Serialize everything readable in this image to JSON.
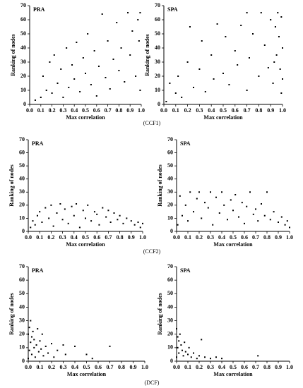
{
  "captions": [
    "(CCF1)",
    "(CCF2)",
    "(DCF)"
  ],
  "chart_data": [
    {
      "type": "scatter",
      "title": "PRA",
      "x_label": "Max correlation",
      "y_label": "Ranking of nodes",
      "color": "#000000",
      "x": [
        0.05,
        0.1,
        0.12,
        0.15,
        0.18,
        0.2,
        0.22,
        0.25,
        0.28,
        0.3,
        0.33,
        0.35,
        0.38,
        0.4,
        0.42,
        0.45,
        0.48,
        0.5,
        0.52,
        0.55,
        0.58,
        0.6,
        0.62,
        0.65,
        0.68,
        0.7,
        0.72,
        0.75,
        0.78,
        0.8,
        0.82,
        0.85,
        0.88,
        0.9,
        0.92,
        0.95,
        0.97,
        0.99,
        0.99,
        0.98
      ],
      "y": [
        3,
        5,
        20,
        10,
        30,
        8,
        35,
        15,
        25,
        5,
        40,
        12,
        28,
        18,
        44,
        9,
        33,
        22,
        50,
        14,
        38,
        6,
        27,
        64,
        19,
        45,
        11,
        32,
        58,
        24,
        40,
        16,
        65,
        35,
        52,
        20,
        60,
        65,
        10,
        45
      ],
      "xlim": [
        0,
        1
      ],
      "ylim": [
        0,
        70
      ],
      "xticks": [
        {
          "value": 0,
          "label": "0.0"
        },
        {
          "value": 0.1,
          "label": "0.1"
        },
        {
          "value": 0.2,
          "label": "0.2"
        },
        {
          "value": 0.3,
          "label": "0.3"
        },
        {
          "value": 0.4,
          "label": "0.4"
        },
        {
          "value": 0.5,
          "label": "0.5"
        },
        {
          "value": 0.6,
          "label": "0.6"
        },
        {
          "value": 0.7,
          "label": "0.7"
        },
        {
          "value": 0.8,
          "label": "0.8"
        },
        {
          "value": 0.9,
          "label": "0.9"
        },
        {
          "value": 1,
          "label": "1.0"
        }
      ],
      "yticks": [
        0,
        10,
        20,
        30,
        40,
        50,
        60,
        70
      ]
    },
    {
      "type": "scatter",
      "title": "SPA",
      "x_label": "Max correlation",
      "y_label": "Ranking of nodes",
      "color": "#000000",
      "x": [
        0.02,
        0.05,
        0.1,
        0.12,
        0.15,
        0.2,
        0.22,
        0.25,
        0.3,
        0.32,
        0.35,
        0.4,
        0.42,
        0.45,
        0.5,
        0.52,
        0.55,
        0.6,
        0.62,
        0.65,
        0.7,
        0.7,
        0.72,
        0.75,
        0.8,
        0.82,
        0.85,
        0.88,
        0.9,
        0.92,
        0.94,
        0.95,
        0.96,
        0.97,
        0.98,
        0.99,
        0.99,
        1.0,
        1.0,
        0.93
      ],
      "y": [
        2,
        15,
        8,
        20,
        5,
        30,
        55,
        12,
        25,
        45,
        9,
        35,
        18,
        57,
        22,
        48,
        14,
        38,
        28,
        56,
        65,
        10,
        33,
        50,
        20,
        65,
        42,
        26,
        60,
        15,
        55,
        35,
        65,
        48,
        25,
        62,
        8,
        40,
        18,
        30
      ],
      "xlim": [
        0,
        1
      ],
      "ylim": [
        0,
        70
      ],
      "xticks": [
        {
          "value": 0,
          "label": "0.0"
        },
        {
          "value": 0.1,
          "label": "0.1"
        },
        {
          "value": 0.2,
          "label": "0.2"
        },
        {
          "value": 0.3,
          "label": "0.3"
        },
        {
          "value": 0.4,
          "label": "0.4"
        },
        {
          "value": 0.5,
          "label": "0.5"
        },
        {
          "value": 0.6,
          "label": "0.6"
        },
        {
          "value": 0.7,
          "label": "0.7"
        },
        {
          "value": 0.8,
          "label": "0.8"
        },
        {
          "value": 0.9,
          "label": "0.9"
        },
        {
          "value": 1,
          "label": "1.0"
        }
      ],
      "yticks": [
        0,
        10,
        20,
        30,
        40,
        50,
        60,
        70
      ]
    },
    {
      "type": "scatter",
      "title": "PRA",
      "x_label": "Max correlation",
      "y_label": "Ranking of nodes",
      "color": "#000000",
      "x": [
        0.02,
        0.04,
        0.06,
        0.08,
        0.1,
        0.12,
        0.15,
        0.18,
        0.2,
        0.22,
        0.25,
        0.28,
        0.3,
        0.32,
        0.35,
        0.38,
        0.4,
        0.42,
        0.45,
        0.48,
        0.5,
        0.52,
        0.55,
        0.58,
        0.6,
        0.62,
        0.65,
        0.68,
        0.7,
        0.72,
        0.75,
        0.78,
        0.8,
        0.83,
        0.86,
        0.9,
        0.93,
        0.96,
        0.98,
        1.0
      ],
      "y": [
        3,
        8,
        5,
        12,
        15,
        7,
        18,
        10,
        20,
        4,
        14,
        21,
        9,
        17,
        6,
        19,
        12,
        21,
        3,
        16,
        10,
        20,
        8,
        15,
        13,
        5,
        18,
        11,
        16,
        7,
        14,
        9,
        12,
        6,
        10,
        8,
        5,
        7,
        3,
        6
      ],
      "xlim": [
        0,
        1
      ],
      "ylim": [
        0,
        70
      ],
      "xticks": [
        {
          "value": 0,
          "label": "0.0"
        },
        {
          "value": 0.1,
          "label": "0.1"
        },
        {
          "value": 0.2,
          "label": "0.2"
        },
        {
          "value": 0.3,
          "label": "0.3"
        },
        {
          "value": 0.4,
          "label": "0.4"
        },
        {
          "value": 0.5,
          "label": "0.5"
        },
        {
          "value": 0.6,
          "label": "0.6"
        },
        {
          "value": 0.7,
          "label": "0.7"
        },
        {
          "value": 0.8,
          "label": "0.8"
        },
        {
          "value": 0.9,
          "label": "0.9"
        },
        {
          "value": 1,
          "label": "1.0"
        }
      ],
      "yticks": [
        0,
        10,
        20,
        30,
        40,
        50,
        60,
        70
      ]
    },
    {
      "type": "scatter",
      "title": "SPA",
      "x_label": "Max correlation",
      "y_label": "Ranking of nodes",
      "color": "#000000",
      "x": [
        0.01,
        0.03,
        0.05,
        0.08,
        0.1,
        0.12,
        0.15,
        0.18,
        0.2,
        0.22,
        0.25,
        0.28,
        0.3,
        0.32,
        0.35,
        0.38,
        0.4,
        0.42,
        0.45,
        0.48,
        0.5,
        0.52,
        0.55,
        0.58,
        0.6,
        0.62,
        0.65,
        0.68,
        0.7,
        0.72,
        0.75,
        0.78,
        0.8,
        0.83,
        0.86,
        0.9,
        0.93,
        0.96,
        0.98,
        1.0
      ],
      "y": [
        5,
        27,
        12,
        20,
        8,
        30,
        15,
        25,
        30,
        10,
        22,
        18,
        30,
        5,
        26,
        14,
        30,
        20,
        9,
        24,
        16,
        28,
        11,
        22,
        6,
        19,
        30,
        13,
        17,
        8,
        21,
        12,
        30,
        9,
        15,
        7,
        11,
        5,
        8,
        3
      ],
      "xlim": [
        0,
        1
      ],
      "ylim": [
        0,
        70
      ],
      "xticks": [
        {
          "value": 0,
          "label": "0.0"
        },
        {
          "value": 0.1,
          "label": "0.1"
        },
        {
          "value": 0.2,
          "label": "0.2"
        },
        {
          "value": 0.3,
          "label": "0.3"
        },
        {
          "value": 0.4,
          "label": "0.4"
        },
        {
          "value": 0.5,
          "label": "0.5"
        },
        {
          "value": 0.6,
          "label": "0.6"
        },
        {
          "value": 0.7,
          "label": "0.7"
        },
        {
          "value": 0.8,
          "label": "0.8"
        },
        {
          "value": 0.9,
          "label": "0.9"
        },
        {
          "value": 1,
          "label": "1.0"
        }
      ],
      "yticks": [
        0,
        10,
        20,
        30,
        40,
        50,
        60,
        70
      ]
    },
    {
      "type": "scatter",
      "title": "PRA",
      "x_label": "Max correlation",
      "y_label": "Ranking of nodes",
      "color": "#000000",
      "x": [
        0.0,
        0.0,
        0.01,
        0.01,
        0.02,
        0.02,
        0.03,
        0.03,
        0.04,
        0.05,
        0.05,
        0.06,
        0.07,
        0.08,
        0.09,
        0.1,
        0.11,
        0.12,
        0.13,
        0.15,
        0.17,
        0.2,
        0.22,
        0.25,
        0.3,
        0.32,
        0.4,
        0.5,
        0.55,
        0.7
      ],
      "y": [
        2,
        20,
        8,
        25,
        14,
        30,
        5,
        18,
        22,
        10,
        16,
        3,
        12,
        24,
        7,
        15,
        9,
        20,
        4,
        11,
        6,
        13,
        3,
        8,
        12,
        5,
        11,
        5,
        2,
        11
      ],
      "xlim": [
        0,
        1
      ],
      "ylim": [
        0,
        70
      ],
      "xticks": [
        {
          "value": 0,
          "label": "0.0"
        },
        {
          "value": 0.1,
          "label": "0.1"
        },
        {
          "value": 0.2,
          "label": "0.2"
        },
        {
          "value": 0.3,
          "label": "0.3"
        },
        {
          "value": 0.4,
          "label": "0.4"
        },
        {
          "value": 0.5,
          "label": "0.5"
        },
        {
          "value": 0.6,
          "label": "0.6"
        },
        {
          "value": 0.7,
          "label": "0.7"
        },
        {
          "value": 0.8,
          "label": "0.8"
        },
        {
          "value": 0.9,
          "label": "0.9"
        },
        {
          "value": 1,
          "label": "1.0"
        }
      ],
      "yticks": [
        0,
        10,
        20,
        30,
        40,
        50,
        60,
        70
      ]
    },
    {
      "type": "scatter",
      "title": "SPA",
      "x_label": "Max correlation",
      "y_label": "Ranking of nodes",
      "color": "#000000",
      "x": [
        0.0,
        0.0,
        0.01,
        0.01,
        0.02,
        0.02,
        0.03,
        0.04,
        0.05,
        0.06,
        0.07,
        0.08,
        0.1,
        0.11,
        0.13,
        0.15,
        0.18,
        0.2,
        0.22,
        0.25,
        0.3,
        0.35,
        0.4,
        0.72
      ],
      "y": [
        3,
        24,
        10,
        18,
        6,
        15,
        20,
        12,
        8,
        4,
        14,
        7,
        5,
        10,
        3,
        6,
        2,
        4,
        16,
        3,
        2,
        3,
        2,
        4
      ],
      "xlim": [
        0,
        1
      ],
      "ylim": [
        0,
        70
      ],
      "xticks": [
        {
          "value": 0,
          "label": "0.0"
        },
        {
          "value": 0.1,
          "label": "0.1"
        },
        {
          "value": 0.2,
          "label": "0.2"
        },
        {
          "value": 0.3,
          "label": "0.3"
        },
        {
          "value": 0.4,
          "label": "0.4"
        },
        {
          "value": 0.5,
          "label": "0.5"
        },
        {
          "value": 0.6,
          "label": "0.6"
        },
        {
          "value": 0.7,
          "label": "0.7"
        },
        {
          "value": 0.8,
          "label": "0.8"
        },
        {
          "value": 0.9,
          "label": "0.9"
        },
        {
          "value": 1,
          "label": "1.0"
        }
      ],
      "yticks": [
        0,
        10,
        20,
        30,
        40,
        50,
        60,
        70
      ]
    }
  ]
}
